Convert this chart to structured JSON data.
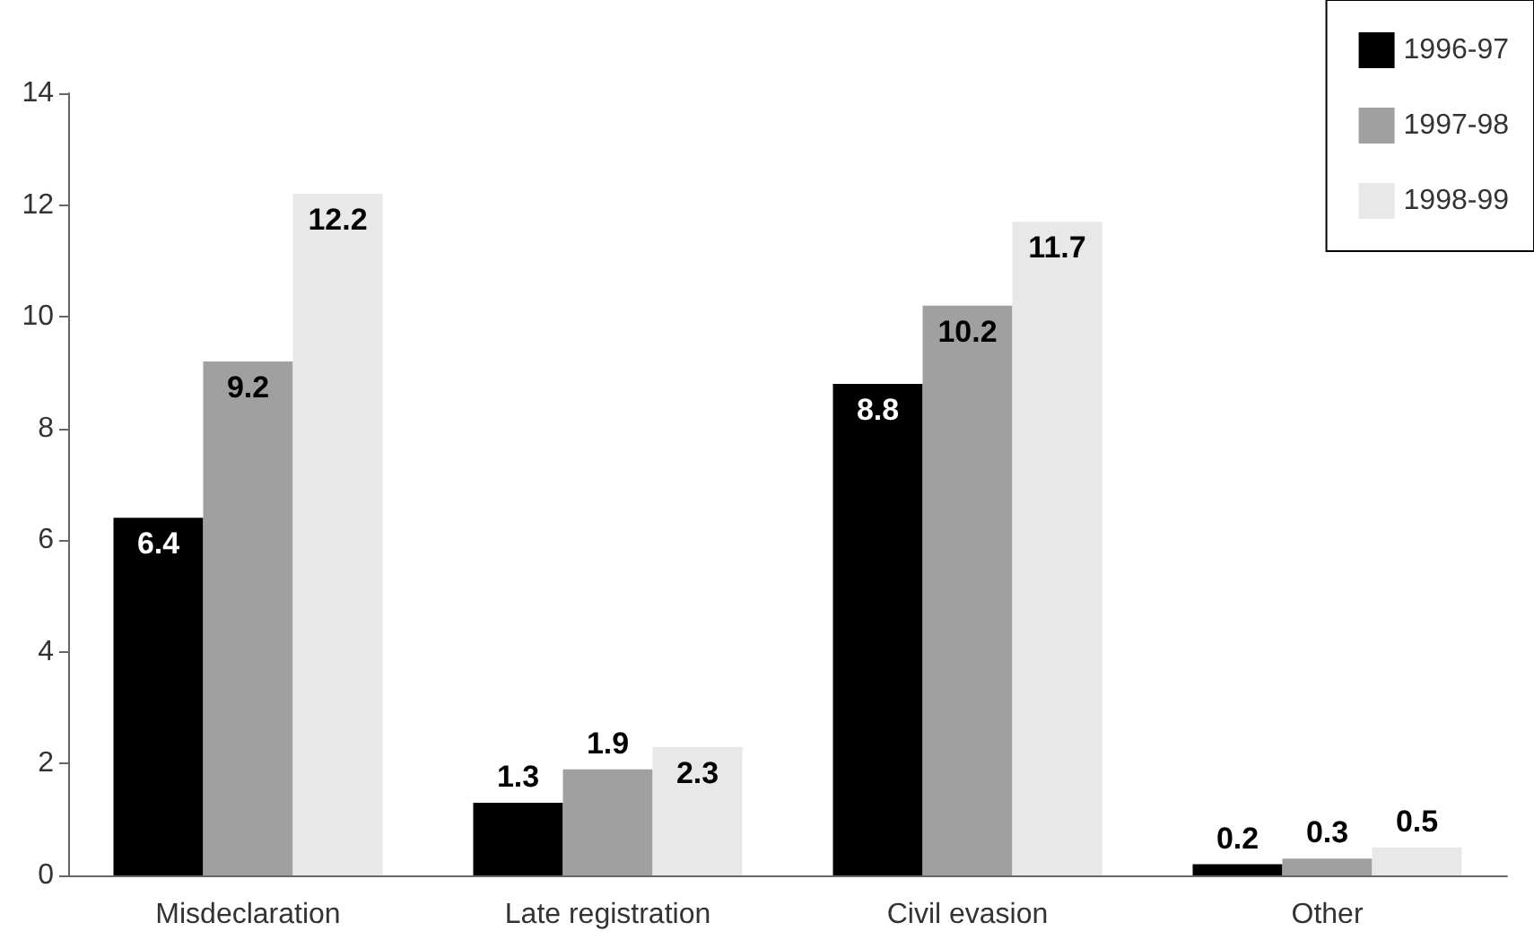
{
  "chart_data": {
    "type": "bar",
    "categories": [
      "Misdeclaration",
      "Late registration",
      "Civil evasion",
      "Other"
    ],
    "series": [
      {
        "name": "1996-97",
        "color": "#000000",
        "values": [
          6.4,
          1.3,
          8.8,
          0.2
        ]
      },
      {
        "name": "1997-98",
        "color": "#a0a0a0",
        "values": [
          9.2,
          1.9,
          10.2,
          0.3
        ]
      },
      {
        "name": "1998-99",
        "color": "#e8e8e8",
        "values": [
          12.2,
          2.3,
          11.7,
          0.5
        ]
      }
    ],
    "ylim": [
      0,
      14
    ],
    "yticks": [
      0,
      2,
      4,
      6,
      8,
      10,
      12,
      14
    ],
    "grid": false,
    "legend": "top right",
    "data_labels": true
  }
}
